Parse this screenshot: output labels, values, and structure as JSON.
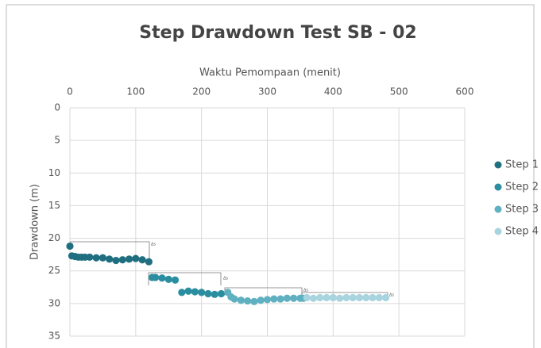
{
  "chart_data": {
    "type": "scatter",
    "title": "Step Drawdown Test SB - 02",
    "x_label": "Waktu Pemompaan (menit)",
    "y_label": "Drawdown (m)",
    "xlim": [
      0,
      600
    ],
    "xticks": [
      0,
      100,
      200,
      300,
      400,
      500,
      600
    ],
    "ylim": [
      0,
      35
    ],
    "yticks": [
      0,
      5,
      10,
      15,
      20,
      25,
      30,
      35
    ],
    "y_inverted": true,
    "x_axis_top": true,
    "grid": true,
    "legend": "right",
    "annotations": [
      "Δs",
      "Δs",
      "Δs",
      "Δs"
    ],
    "series": [
      {
        "name": "Step 1",
        "color": "#1f6f80",
        "x": [
          0,
          3,
          8,
          13,
          18,
          23,
          30,
          40,
          50,
          60,
          70,
          80,
          90,
          100,
          110,
          120
        ],
        "values": [
          21.2,
          22.7,
          22.8,
          22.9,
          22.9,
          22.9,
          22.9,
          23.0,
          23.0,
          23.2,
          23.4,
          23.3,
          23.2,
          23.1,
          23.3,
          23.6
        ]
      },
      {
        "name": "Step 2",
        "color": "#2a8ea0",
        "x": [
          125,
          130,
          140,
          150,
          160,
          170,
          180,
          190,
          200,
          210,
          220,
          230
        ],
        "values": [
          26.0,
          26.0,
          26.1,
          26.3,
          26.4,
          28.3,
          28.1,
          28.2,
          28.3,
          28.5,
          28.6,
          28.5
        ]
      },
      {
        "name": "Step 3",
        "color": "#5fb0c0",
        "x": [
          240,
          245,
          250,
          260,
          270,
          280,
          290,
          300,
          310,
          320,
          330,
          340,
          350,
          355
        ],
        "values": [
          28.3,
          29.0,
          29.3,
          29.5,
          29.6,
          29.7,
          29.5,
          29.4,
          29.3,
          29.3,
          29.2,
          29.2,
          29.2,
          29.2
        ]
      },
      {
        "name": "Step 4",
        "color": "#a8d4e0",
        "x": [
          360,
          370,
          380,
          390,
          400,
          410,
          420,
          430,
          440,
          450,
          460,
          470,
          480
        ],
        "values": [
          29.1,
          29.2,
          29.1,
          29.1,
          29.1,
          29.2,
          29.1,
          29.1,
          29.1,
          29.1,
          29.1,
          29.1,
          29.1
        ]
      }
    ]
  }
}
